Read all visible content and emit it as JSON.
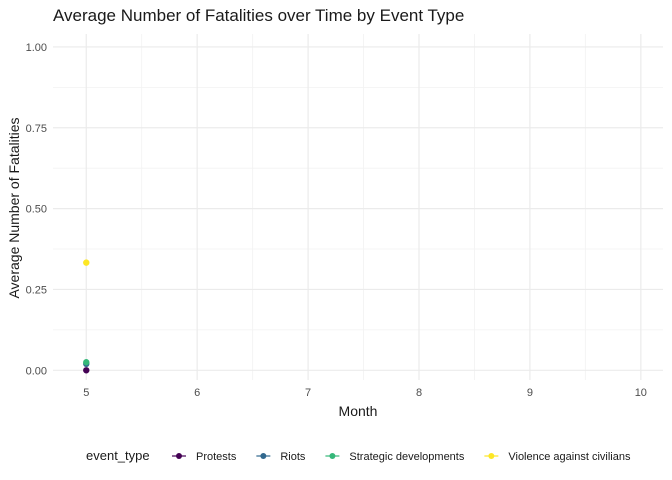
{
  "chart_data": {
    "type": "line",
    "title": "Average Number of Fatalities over Time by Event Type",
    "xlabel": "Month",
    "ylabel": "Average Number of Fatalities",
    "xlim": [
      4.7,
      10.2
    ],
    "ylim": [
      -0.03,
      1.04
    ],
    "x_ticks": [
      5,
      6,
      7,
      8,
      9,
      10
    ],
    "y_ticks": [
      0.0,
      0.25,
      0.5,
      0.75,
      1.0
    ],
    "y_tick_labels": [
      "0.00",
      "0.25",
      "0.50",
      "0.75",
      "1.00"
    ],
    "grid": true,
    "legend_position": "bottom",
    "legend_title": "event_type",
    "series": [
      {
        "name": "Protests",
        "color": "#440154",
        "x": [
          5
        ],
        "y": [
          0.0
        ]
      },
      {
        "name": "Riots",
        "color": "#31688E",
        "x": [
          5
        ],
        "y": [
          0.02
        ]
      },
      {
        "name": "Strategic developments",
        "color": "#35B779",
        "x": [
          5
        ],
        "y": [
          0.025
        ]
      },
      {
        "name": "Violence against civilians",
        "color": "#FDE725",
        "x": [
          5
        ],
        "y": [
          0.333
        ]
      }
    ]
  }
}
